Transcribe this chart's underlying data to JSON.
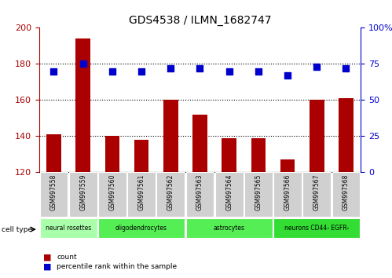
{
  "title": "GDS4538 / ILMN_1682747",
  "samples": [
    "GSM997558",
    "GSM997559",
    "GSM997560",
    "GSM997561",
    "GSM997562",
    "GSM997563",
    "GSM997564",
    "GSM997565",
    "GSM997566",
    "GSM997567",
    "GSM997568"
  ],
  "counts": [
    141,
    194,
    140,
    138,
    160,
    152,
    139,
    139,
    127,
    160,
    161
  ],
  "percentile_ranks": [
    70,
    75,
    70,
    70,
    72,
    72,
    70,
    70,
    67,
    73,
    72
  ],
  "cell_type_groups": [
    {
      "label": "neural rosettes",
      "indices": [
        0,
        1
      ],
      "color": "#aaffaa"
    },
    {
      "label": "oligodendrocytes",
      "indices": [
        2,
        3,
        4
      ],
      "color": "#55ee55"
    },
    {
      "label": "astrocytes",
      "indices": [
        5,
        6,
        7
      ],
      "color": "#55ee55"
    },
    {
      "label": "neurons CD44- EGFR-",
      "indices": [
        8,
        9,
        10
      ],
      "color": "#33dd33"
    }
  ],
  "ylim_left": [
    120,
    200
  ],
  "ylim_right": [
    0,
    100
  ],
  "bar_color": "#aa0000",
  "dot_color": "#0000cc",
  "tick_label_bg": "#d0d0d0"
}
